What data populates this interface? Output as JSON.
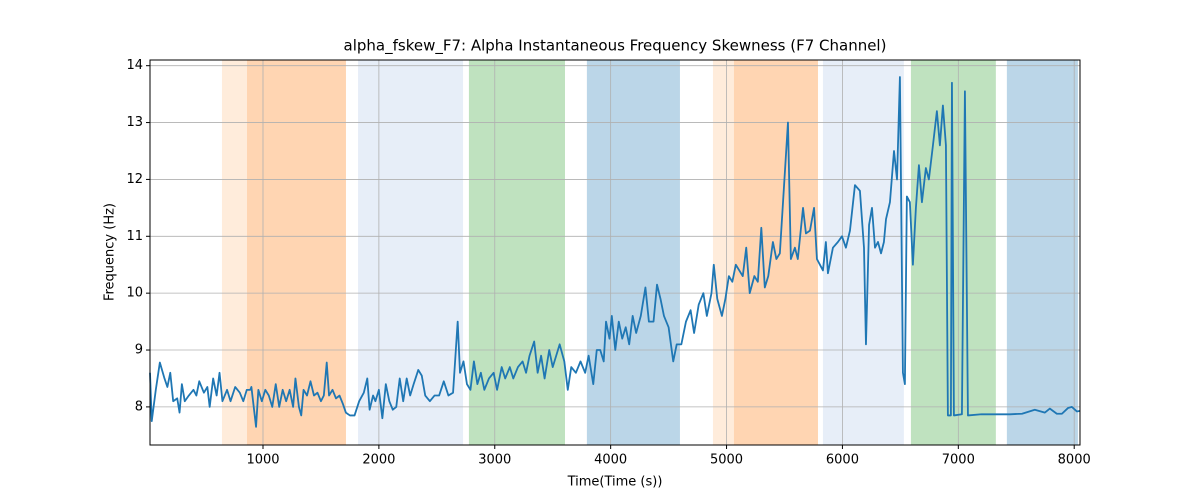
{
  "chart_data": {
    "type": "line",
    "title": "alpha_fskew_F7: Alpha Instantaneous Frequency Skewness (F7 Channel)",
    "xlabel": "Time(Time (s))",
    "ylabel": "Frequency (Hz)",
    "x": [
      25,
      40,
      75,
      110,
      150,
      175,
      200,
      225,
      260,
      280,
      300,
      325,
      360,
      400,
      425,
      450,
      490,
      520,
      540,
      570,
      600,
      625,
      650,
      690,
      720,
      760,
      800,
      830,
      860,
      890,
      900,
      940,
      960,
      990,
      1020,
      1050,
      1080,
      1110,
      1140,
      1170,
      1200,
      1230,
      1260,
      1280,
      1310,
      1330,
      1350,
      1380,
      1410,
      1440,
      1470,
      1500,
      1525,
      1550,
      1570,
      1600,
      1630,
      1660,
      1690,
      1715,
      1750,
      1790,
      1830,
      1870,
      1900,
      1920,
      1950,
      1970,
      2000,
      2030,
      2060,
      2090,
      2120,
      2150,
      2180,
      2210,
      2240,
      2270,
      2300,
      2340,
      2370,
      2400,
      2440,
      2480,
      2520,
      2560,
      2600,
      2640,
      2680,
      2700,
      2730,
      2760,
      2790,
      2820,
      2850,
      2880,
      2910,
      2950,
      2990,
      3020,
      3060,
      3090,
      3130,
      3160,
      3200,
      3240,
      3270,
      3300,
      3340,
      3370,
      3400,
      3430,
      3470,
      3500,
      3530,
      3560,
      3600,
      3630,
      3660,
      3700,
      3740,
      3780,
      3810,
      3850,
      3880,
      3910,
      3940,
      3960,
      3990,
      4010,
      4040,
      4070,
      4100,
      4130,
      4160,
      4190,
      4220,
      4260,
      4300,
      4330,
      4370,
      4400,
      4430,
      4460,
      4500,
      4540,
      4570,
      4610,
      4650,
      4690,
      4720,
      4760,
      4800,
      4830,
      4870,
      4890,
      4920,
      4960,
      4990,
      5020,
      5050,
      5080,
      5110,
      5140,
      5170,
      5200,
      5240,
      5270,
      5300,
      5330,
      5360,
      5400,
      5430,
      5460,
      5530,
      5555,
      5590,
      5615,
      5660,
      5685,
      5720,
      5755,
      5780,
      5832,
      5857,
      5875,
      5918,
      5961,
      5996,
      6030,
      6065,
      6108,
      6151,
      6186,
      6203,
      6230,
      6255,
      6281,
      6307,
      6333,
      6358,
      6376,
      6410,
      6445,
      6471,
      6496,
      6522,
      6539,
      6556,
      6582,
      6608,
      6634,
      6660,
      6686,
      6720,
      6746,
      6781,
      6815,
      6841,
      6867,
      6893,
      6910,
      6936,
      6945,
      6962,
      7031,
      7057,
      7083,
      7200,
      7300,
      7445,
      7550,
      7660,
      7747,
      7790,
      7850,
      7894,
      7946,
      7980,
      8023,
      8050
    ],
    "values": [
      8.6,
      7.75,
      8.3,
      8.78,
      8.5,
      8.35,
      8.6,
      8.1,
      8.15,
      7.9,
      8.4,
      8.1,
      8.2,
      8.3,
      8.2,
      8.45,
      8.25,
      8.35,
      8.0,
      8.5,
      8.2,
      8.6,
      8.1,
      8.3,
      8.1,
      8.35,
      8.25,
      8.1,
      8.3,
      8.3,
      8.35,
      7.65,
      8.3,
      8.1,
      8.3,
      8.2,
      8.0,
      8.4,
      8.0,
      8.3,
      8.1,
      8.3,
      8.0,
      8.5,
      8.0,
      7.85,
      8.3,
      8.2,
      8.45,
      8.2,
      8.25,
      8.1,
      8.2,
      8.78,
      8.2,
      8.3,
      8.15,
      8.2,
      8.05,
      7.9,
      7.85,
      7.85,
      8.1,
      8.25,
      8.5,
      7.95,
      8.2,
      8.1,
      8.3,
      7.8,
      8.4,
      8.1,
      7.95,
      8.0,
      8.5,
      8.1,
      8.5,
      8.2,
      8.4,
      8.65,
      8.55,
      8.2,
      8.1,
      8.2,
      8.2,
      8.45,
      8.2,
      8.25,
      9.5,
      8.6,
      8.8,
      8.4,
      8.3,
      8.8,
      8.4,
      8.6,
      8.3,
      8.5,
      8.6,
      8.3,
      8.7,
      8.5,
      8.7,
      8.5,
      8.7,
      8.8,
      8.6,
      8.9,
      9.15,
      8.6,
      8.9,
      8.5,
      9.0,
      8.7,
      8.9,
      9.1,
      8.8,
      8.3,
      8.7,
      8.6,
      8.8,
      8.6,
      8.9,
      8.4,
      9.0,
      9.0,
      8.8,
      9.5,
      9.2,
      9.6,
      9.0,
      9.5,
      9.2,
      9.4,
      9.1,
      9.6,
      9.3,
      9.6,
      10.1,
      9.5,
      9.5,
      10.15,
      9.9,
      9.6,
      9.4,
      8.8,
      9.1,
      9.1,
      9.5,
      9.7,
      9.3,
      9.8,
      10.0,
      9.6,
      10.0,
      10.5,
      9.9,
      9.6,
      9.9,
      10.3,
      10.2,
      10.5,
      10.4,
      10.3,
      10.8,
      10.0,
      10.3,
      10.2,
      11.15,
      10.1,
      10.3,
      10.9,
      10.6,
      10.7,
      13.0,
      10.6,
      10.8,
      10.6,
      11.5,
      11.05,
      11.1,
      11.5,
      10.6,
      10.4,
      10.9,
      10.35,
      10.8,
      10.9,
      11.0,
      10.8,
      11.1,
      11.9,
      11.8,
      10.8,
      9.1,
      11.2,
      11.5,
      10.8,
      10.9,
      10.7,
      10.9,
      11.3,
      11.6,
      12.5,
      12.0,
      13.8,
      8.6,
      8.4,
      11.7,
      11.6,
      10.5,
      11.5,
      12.25,
      11.6,
      12.2,
      12.0,
      12.6,
      13.2,
      12.6,
      13.3,
      12.6,
      7.85,
      7.85,
      13.7,
      7.85,
      7.87,
      13.55,
      7.85,
      7.87,
      7.87,
      7.87,
      7.88,
      7.95,
      7.9,
      7.97,
      7.88,
      7.88,
      7.98,
      8.0,
      7.92,
      7.93
    ],
    "color": "#1f77b4",
    "spans": [
      {
        "start": 646,
        "end": 1716,
        "color": "#ff7f0e",
        "alpha": 0.15
      },
      {
        "start": 862,
        "end": 1716,
        "color": "#ff7f0e",
        "alpha": 0.2
      },
      {
        "start": 1820,
        "end": 2726,
        "color": "#aec7e8",
        "alpha": 0.3
      },
      {
        "start": 2777,
        "end": 3606,
        "color": "#2ca02c",
        "alpha": 0.3
      },
      {
        "start": 3795,
        "end": 4598,
        "color": "#1f77b4",
        "alpha": 0.3
      },
      {
        "start": 4883,
        "end": 5789,
        "color": "#ff7f0e",
        "alpha": 0.15
      },
      {
        "start": 5064,
        "end": 5789,
        "color": "#ff7f0e",
        "alpha": 0.2
      },
      {
        "start": 5832,
        "end": 6530,
        "color": "#aec7e8",
        "alpha": 0.3
      },
      {
        "start": 6591,
        "end": 7324,
        "color": "#2ca02c",
        "alpha": 0.3
      },
      {
        "start": 7419,
        "end": 8032,
        "color": "#1f77b4",
        "alpha": 0.3
      }
    ],
    "xlim": [
      25,
      8050
    ],
    "ylim": [
      7.33,
      14.1
    ],
    "xticks": [
      1000,
      2000,
      3000,
      4000,
      5000,
      6000,
      7000,
      8000
    ],
    "yticks": [
      8,
      9,
      10,
      11,
      12,
      13,
      14
    ],
    "grid": true
  }
}
